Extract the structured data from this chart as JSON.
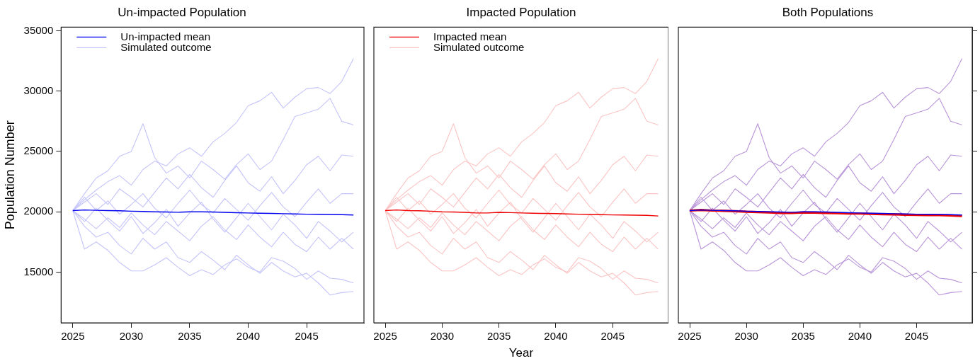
{
  "chart_data": [
    {
      "type": "line",
      "title": "Un-impacted Population",
      "ylabel": "Population Number",
      "legend": "top left",
      "grid": false,
      "marker": "none",
      "line_style": "solid",
      "x": [
        2025,
        2026,
        2027,
        2028,
        2029,
        2030,
        2031,
        2032,
        2033,
        2034,
        2035,
        2036,
        2037,
        2038,
        2039,
        2040,
        2041,
        2042,
        2043,
        2044,
        2045,
        2046,
        2047,
        2048,
        2049
      ],
      "xlim": [
        2024,
        2049.9
      ],
      "xticks": [
        2025,
        2030,
        2035,
        2040,
        2045
      ],
      "ylim": [
        10800,
        35300
      ],
      "yticks": [
        15000,
        20000,
        25000,
        30000,
        35000
      ],
      "series": [
        {
          "name": "Simulated outcome",
          "color": "#c4c4fa",
          "values": [
            20100,
            21000,
            21800,
            22500,
            23000,
            22200,
            23500,
            24200,
            23800,
            24800,
            25300,
            24600,
            25800,
            26500,
            27400,
            28800,
            29200,
            29900,
            28600,
            29500,
            30200,
            30300,
            29800,
            30800,
            32700
          ]
        },
        {
          "color": "#c4c4fa",
          "values": [
            20100,
            21500,
            22800,
            23400,
            24600,
            25000,
            27300,
            24500,
            23200,
            23800,
            22800,
            24200,
            23500,
            22700,
            23900,
            24800,
            23500,
            24200,
            26000,
            27900,
            28200,
            28500,
            29400,
            27500,
            27200
          ]
        },
        {
          "color": "#c4c4fa",
          "values": [
            20100,
            18800,
            17900,
            18300,
            17200,
            16500,
            17800,
            16900,
            17500,
            16200,
            15800,
            16700,
            16000,
            15200,
            16400,
            15600,
            14900,
            15800,
            15100,
            14600,
            14900,
            14100,
            13100,
            13300,
            13400
          ]
        },
        {
          "color": "#c4c4fa",
          "values": [
            20100,
            16900,
            17500,
            16800,
            15800,
            15100,
            15100,
            15600,
            16200,
            15400,
            14700,
            15200,
            14800,
            15600,
            16100,
            15400,
            15000,
            16200,
            15900,
            15300,
            14400,
            15100,
            14500,
            14400,
            14100
          ]
        },
        {
          "color": "#c4c4fa",
          "values": [
            20100,
            20800,
            21500,
            20600,
            21900,
            21200,
            20400,
            21600,
            22800,
            21900,
            23100,
            22000,
            21200,
            22600,
            23800,
            22400,
            21700,
            22900,
            21500,
            22600,
            23900,
            24600,
            23400,
            24700,
            24600
          ]
        },
        {
          "color": "#c4c4fa",
          "values": [
            20100,
            19400,
            18600,
            19500,
            18700,
            19900,
            18900,
            18100,
            19200,
            18400,
            17600,
            18800,
            19600,
            18500,
            17700,
            18900,
            17900,
            17100,
            18300,
            17300,
            16700,
            17900,
            16900,
            17800,
            16900
          ]
        },
        {
          "color": "#c4c4fa",
          "values": [
            20100,
            21200,
            20100,
            20900,
            19800,
            20600,
            21500,
            20300,
            19500,
            20700,
            21800,
            20600,
            19900,
            21100,
            20200,
            19300,
            20500,
            21600,
            20400,
            19600,
            20800,
            21900,
            20700,
            21500,
            21500
          ]
        },
        {
          "color": "#c4c4fa",
          "values": [
            20100,
            19200,
            20300,
            19300,
            18400,
            19600,
            18200,
            19100,
            20200,
            18800,
            19900,
            20800,
            19400,
            18300,
            19500,
            20700,
            19600,
            18500,
            19800,
            18900,
            17800,
            19200,
            18400,
            17500,
            18300
          ]
        },
        {
          "name": "Un-impacted mean",
          "color": "#0000ee",
          "values": [
            20100,
            20150,
            20120,
            20100,
            20080,
            20050,
            20030,
            20000,
            19980,
            19960,
            20000,
            20000,
            19980,
            19950,
            19920,
            19900,
            19880,
            19860,
            19840,
            19820,
            19800,
            19790,
            19780,
            19760,
            19730
          ]
        }
      ]
    },
    {
      "type": "line",
      "title": "Impacted Population",
      "xlabel": "Year",
      "legend": "top left",
      "grid": false,
      "marker": "none",
      "line_style": "solid",
      "tick_labels": "x",
      "x": [
        2025,
        2026,
        2027,
        2028,
        2029,
        2030,
        2031,
        2032,
        2033,
        2034,
        2035,
        2036,
        2037,
        2038,
        2039,
        2040,
        2041,
        2042,
        2043,
        2044,
        2045,
        2046,
        2047,
        2048,
        2049
      ],
      "xlim": [
        2024,
        2049.9
      ],
      "xticks": [
        2025,
        2030,
        2035,
        2040,
        2045
      ],
      "ylim": [
        10800,
        35300
      ],
      "yticks": [
        15000,
        20000,
        25000,
        30000,
        35000
      ],
      "series": [
        {
          "name": "Simulated outcome",
          "color": "#fbc4c4",
          "values": [
            20100,
            21000,
            21800,
            22500,
            23000,
            22200,
            23500,
            24200,
            23800,
            24800,
            25300,
            24600,
            25800,
            26500,
            27400,
            28800,
            29200,
            29900,
            28600,
            29500,
            30200,
            30300,
            29800,
            30800,
            32700
          ]
        },
        {
          "color": "#fbc4c4",
          "values": [
            20100,
            21500,
            22800,
            23400,
            24600,
            25000,
            27300,
            24500,
            23200,
            23800,
            22800,
            24200,
            23500,
            22700,
            23900,
            24800,
            23500,
            24200,
            26000,
            27900,
            28200,
            28500,
            29400,
            27500,
            27200
          ]
        },
        {
          "color": "#fbc4c4",
          "values": [
            20100,
            18800,
            17900,
            18300,
            17200,
            16500,
            17800,
            16900,
            17500,
            16200,
            15800,
            16700,
            16000,
            15200,
            16400,
            15600,
            14900,
            15800,
            15100,
            14600,
            14900,
            14100,
            13100,
            13300,
            13400
          ]
        },
        {
          "color": "#fbc4c4",
          "values": [
            20100,
            16900,
            17500,
            16800,
            15800,
            15100,
            15100,
            15600,
            16200,
            15400,
            14700,
            15200,
            14800,
            15600,
            16100,
            15400,
            15000,
            16200,
            15900,
            15300,
            14400,
            15100,
            14500,
            14400,
            14100
          ]
        },
        {
          "color": "#fbc4c4",
          "values": [
            20100,
            20800,
            21500,
            20600,
            21900,
            21200,
            20400,
            21600,
            22800,
            21900,
            23100,
            22000,
            21200,
            22600,
            23800,
            22400,
            21700,
            22900,
            21500,
            22600,
            23900,
            24600,
            23400,
            24700,
            24600
          ]
        },
        {
          "color": "#fbc4c4",
          "values": [
            20100,
            19400,
            18600,
            19500,
            18700,
            19900,
            18900,
            18100,
            19200,
            18400,
            17600,
            18800,
            19600,
            18500,
            17700,
            18900,
            17900,
            17100,
            18300,
            17300,
            16700,
            17900,
            16900,
            17800,
            16900
          ]
        },
        {
          "color": "#fbc4c4",
          "values": [
            20100,
            21200,
            20100,
            20900,
            19800,
            20600,
            21500,
            20300,
            19500,
            20700,
            21800,
            20600,
            19900,
            21100,
            20200,
            19300,
            20500,
            21600,
            20400,
            19600,
            20800,
            21900,
            20700,
            21500,
            21500
          ]
        },
        {
          "color": "#fbc4c4",
          "values": [
            20100,
            19200,
            20300,
            19300,
            18400,
            19600,
            18200,
            19100,
            20200,
            18800,
            19900,
            20800,
            19400,
            18300,
            19500,
            20700,
            19600,
            18500,
            19800,
            18900,
            17800,
            19200,
            18400,
            17500,
            18300
          ]
        },
        {
          "name": "Impacted mean",
          "color": "#ee0000",
          "values": [
            20100,
            20150,
            20100,
            20080,
            20050,
            20000,
            19980,
            19950,
            19900,
            19900,
            19950,
            19930,
            19900,
            19880,
            19860,
            19850,
            19820,
            19800,
            19780,
            19760,
            19740,
            19730,
            19720,
            19700,
            19650
          ]
        }
      ]
    },
    {
      "type": "line",
      "title": "Both Populations",
      "legend": false,
      "grid": false,
      "marker": "none",
      "line_style": "solid",
      "tick_labels": "x",
      "x": [
        2025,
        2026,
        2027,
        2028,
        2029,
        2030,
        2031,
        2032,
        2033,
        2034,
        2035,
        2036,
        2037,
        2038,
        2039,
        2040,
        2041,
        2042,
        2043,
        2044,
        2045,
        2046,
        2047,
        2048,
        2049
      ],
      "xlim": [
        2024,
        2049.9
      ],
      "xticks": [
        2025,
        2030,
        2035,
        2040,
        2045
      ],
      "ylim": [
        10800,
        35300
      ],
      "yticks": [
        15000,
        20000,
        25000,
        30000,
        35000
      ],
      "series": [
        {
          "color": "#b894d8",
          "values": [
            20100,
            21000,
            21800,
            22500,
            23000,
            22200,
            23500,
            24200,
            23800,
            24800,
            25300,
            24600,
            25800,
            26500,
            27400,
            28800,
            29200,
            29900,
            28600,
            29500,
            30200,
            30300,
            29800,
            30800,
            32700
          ]
        },
        {
          "color": "#b894d8",
          "values": [
            20100,
            21500,
            22800,
            23400,
            24600,
            25000,
            27300,
            24500,
            23200,
            23800,
            22800,
            24200,
            23500,
            22700,
            23900,
            24800,
            23500,
            24200,
            26000,
            27900,
            28200,
            28500,
            29400,
            27500,
            27200
          ]
        },
        {
          "color": "#b894d8",
          "values": [
            20100,
            18800,
            17900,
            18300,
            17200,
            16500,
            17800,
            16900,
            17500,
            16200,
            15800,
            16700,
            16000,
            15200,
            16400,
            15600,
            14900,
            15800,
            15100,
            14600,
            14900,
            14100,
            13100,
            13300,
            13400
          ]
        },
        {
          "color": "#b894d8",
          "values": [
            20100,
            16900,
            17500,
            16800,
            15800,
            15100,
            15100,
            15600,
            16200,
            15400,
            14700,
            15200,
            14800,
            15600,
            16100,
            15400,
            15000,
            16200,
            15900,
            15300,
            14400,
            15100,
            14500,
            14400,
            14100
          ]
        },
        {
          "color": "#b894d8",
          "values": [
            20100,
            20800,
            21500,
            20600,
            21900,
            21200,
            20400,
            21600,
            22800,
            21900,
            23100,
            22000,
            21200,
            22600,
            23800,
            22400,
            21700,
            22900,
            21500,
            22600,
            23900,
            24600,
            23400,
            24700,
            24600
          ]
        },
        {
          "color": "#b894d8",
          "values": [
            20100,
            19400,
            18600,
            19500,
            18700,
            19900,
            18900,
            18100,
            19200,
            18400,
            17600,
            18800,
            19600,
            18500,
            17700,
            18900,
            17900,
            17100,
            18300,
            17300,
            16700,
            17900,
            16900,
            17800,
            16900
          ]
        },
        {
          "color": "#b894d8",
          "values": [
            20100,
            21200,
            20100,
            20900,
            19800,
            20600,
            21500,
            20300,
            19500,
            20700,
            21800,
            20600,
            19900,
            21100,
            20200,
            19300,
            20500,
            21600,
            20400,
            19600,
            20800,
            21900,
            20700,
            21500,
            21500
          ]
        },
        {
          "color": "#b894d8",
          "values": [
            20100,
            19200,
            20300,
            19300,
            18400,
            19600,
            18200,
            19100,
            20200,
            18800,
            19900,
            20800,
            19400,
            18300,
            19500,
            20700,
            19600,
            18500,
            19800,
            18900,
            17800,
            19200,
            18400,
            17500,
            18300
          ]
        },
        {
          "color": "#ee0000",
          "values": [
            20100,
            20150,
            20100,
            20080,
            20050,
            20000,
            19980,
            19950,
            19900,
            19900,
            19950,
            19930,
            19900,
            19880,
            19860,
            19850,
            19820,
            19800,
            19780,
            19760,
            19740,
            19730,
            19720,
            19700,
            19650
          ]
        },
        {
          "color": "#0000ee",
          "values": [
            20100,
            20150,
            20120,
            20100,
            20080,
            20050,
            20030,
            20000,
            19980,
            19960,
            20000,
            20000,
            19980,
            19950,
            19920,
            19900,
            19880,
            19860,
            19840,
            19820,
            19800,
            19790,
            19780,
            19760,
            19730
          ]
        }
      ]
    }
  ]
}
